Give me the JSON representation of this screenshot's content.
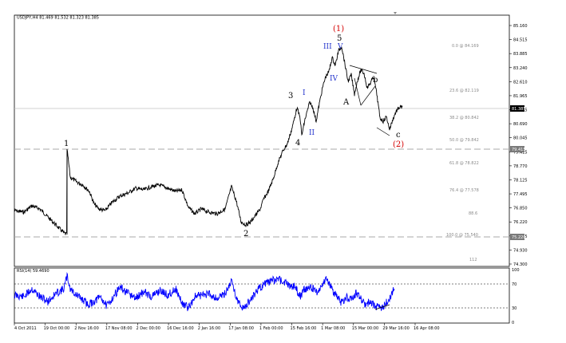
{
  "chart_header": "USDJPY,H4  81.469 81.532 81.323 81.385",
  "rsi_header": "RSI(14) 59.4690",
  "price_axis": {
    "ticks": [
      "85.160",
      "84.515",
      "83.885",
      "83.240",
      "82.610",
      "81.965",
      "81.335",
      "80.690",
      "80.045",
      "79.415",
      "78.770",
      "78.125",
      "77.495",
      "76.850",
      "76.220",
      "75.575",
      "74.930",
      "74.300"
    ],
    "current_price_label": "81.385",
    "level_79_label": "79.415",
    "level_75_label": "75.220"
  },
  "rsi_axis": {
    "ticks": [
      "100",
      "70",
      "30",
      "0"
    ]
  },
  "time_axis": {
    "ticks": [
      "4 Oct 2011",
      "19 Oct 00:00",
      "2 Nov 16:00",
      "17 Nov 08:00",
      "2 Dec 00:00",
      "16 Dec 16:00",
      "2 Jan 16:00",
      "17 Jan 08:00",
      "1 Feb 00:00",
      "15 Feb 16:00",
      "1 Mar 08:00",
      "15 Mar 00:00",
      "29 Mar 16:00",
      "16 Apr 08:00"
    ]
  },
  "fib_labels": [
    "0.0 @ 84.169",
    "23.6 @ 82.119",
    "38.2 @ 80.842",
    "50.0 @ 79.842",
    "61.8 @ 78.822",
    "76.4 @ 77.578",
    "88.6",
    "100.0 @ 75.540",
    "112"
  ],
  "wave_labels": {
    "w1": "1",
    "w2": "2",
    "w3": "3",
    "w4": "4",
    "w5": "5",
    "sub1": "I",
    "sub2": "II",
    "sub3": "III",
    "sub4": "IV",
    "sub5": "V",
    "wA": "A",
    "wb": "b",
    "wc": "c",
    "major1": "(1)",
    "major2": "(2)"
  },
  "colors": {
    "price_line": "#000000",
    "rsi_line": "#0000ff",
    "wave_blue": "#2233cc",
    "wave_red": "#d40000",
    "fib_grey": "#8a8a8a",
    "current_badge": "#000000",
    "level_badge": "#7a7a7a"
  }
}
